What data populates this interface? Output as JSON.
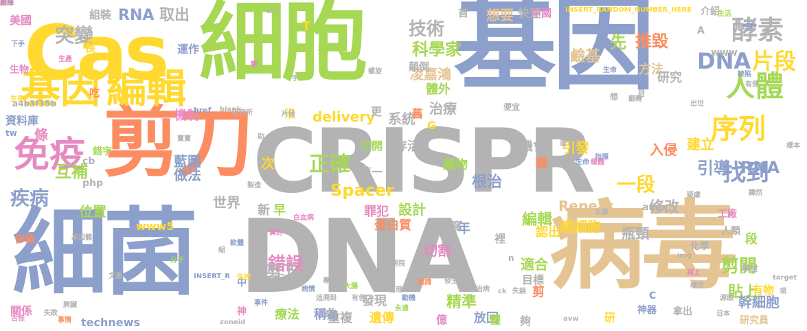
{
  "palette": {
    "blue": "#8da0cb",
    "gray": "#b3b3b3",
    "orange": "#fc8d62",
    "green": "#a6d854",
    "yellow": "#ffd92f",
    "tan": "#e5c494",
    "pink": "#e78ac3",
    "teal": "#66c2a5"
  },
  "words": [
    {
      "text": "CRISPR",
      "color": "gray"
    },
    {
      "text": "DNA",
      "color": "gray"
    },
    {
      "text": "病毒",
      "color": "tan"
    },
    {
      "text": "細菌",
      "color": "blue"
    },
    {
      "text": "基因",
      "color": "blue"
    },
    {
      "text": "細胞",
      "color": "green"
    },
    {
      "text": "Cas",
      "color": "yellow"
    },
    {
      "text": "剪刀",
      "color": "orange"
    },
    {
      "text": "基因",
      "color": "yellow"
    },
    {
      "text": "編輯",
      "color": "yellow"
    },
    {
      "text": "酵素",
      "color": "gray"
    },
    {
      "text": "人體",
      "color": "green"
    },
    {
      "text": "序列",
      "color": "yellow"
    },
    {
      "text": "DNA",
      "color": "blue"
    },
    {
      "text": "片段",
      "color": "yellow"
    },
    {
      "text": "免疫",
      "color": "pink"
    },
    {
      "text": "找到",
      "color": "blue"
    },
    {
      "text": "引導",
      "color": "blue"
    },
    {
      "text": "RNA",
      "color": "blue"
    },
    {
      "text": "技術",
      "color": "gray"
    },
    {
      "text": "科學家",
      "color": "green"
    },
    {
      "text": "突變",
      "color": "gray"
    },
    {
      "text": "正確",
      "color": "green"
    },
    {
      "text": "疾病",
      "color": "blue"
    },
    {
      "text": "互補",
      "color": "green"
    },
    {
      "text": "一段",
      "color": "yellow"
    },
    {
      "text": "凌嘉鴻",
      "color": "tan"
    },
    {
      "text": "治療",
      "color": "gray"
    },
    {
      "text": "RNA",
      "color": "blue"
    },
    {
      "text": "取出",
      "color": "gray"
    },
    {
      "text": "想要",
      "color": "tan"
    },
    {
      "text": "快速",
      "color": "gray"
    },
    {
      "text": "推毀",
      "color": "orange"
    },
    {
      "text": "先",
      "color": "green"
    },
    {
      "text": "鹼基",
      "color": "tan"
    },
    {
      "text": "方法",
      "color": "tan"
    },
    {
      "text": "研究",
      "color": "gray"
    },
    {
      "text": "根治",
      "color": "blue"
    },
    {
      "text": "錯誤",
      "color": "pink"
    },
    {
      "text": "剪下",
      "color": "gray"
    },
    {
      "text": "編輯",
      "color": "green"
    },
    {
      "text": "精準",
      "color": "green"
    },
    {
      "text": "修改",
      "color": "gray"
    },
    {
      "text": "剪開",
      "color": "green"
    },
    {
      "text": "貼上",
      "color": "green"
    },
    {
      "text": "入侵",
      "color": "orange"
    },
    {
      "text": "引發",
      "color": "yellow"
    },
    {
      "text": "建立",
      "color": "yellow"
    },
    {
      "text": "Spacer",
      "color": "yellow"
    },
    {
      "text": "Repeat",
      "color": "tan"
    },
    {
      "text": "癌細胞",
      "color": "yellow"
    },
    {
      "text": "瓶頸",
      "color": "gray"
    },
    {
      "text": "幹細胞",
      "color": "blue"
    },
    {
      "text": "位置",
      "color": "green"
    },
    {
      "text": "機制",
      "color": "pink"
    },
    {
      "text": "藍圖",
      "color": "blue"
    },
    {
      "text": "做法",
      "color": "blue"
    },
    {
      "text": "世界",
      "color": "gray"
    },
    {
      "text": "系統",
      "color": "gray"
    },
    {
      "text": "delivery",
      "color": "yellow"
    },
    {
      "text": "設計",
      "color": "green"
    },
    {
      "text": "切割",
      "color": "pink"
    },
    {
      "text": "適合",
      "color": "green"
    },
    {
      "text": "機會",
      "color": "gray"
    },
    {
      "text": "存活",
      "color": "gray"
    },
    {
      "text": "蛋白質",
      "color": "orange"
    },
    {
      "text": "罪犯",
      "color": "pink"
    },
    {
      "text": "發現",
      "color": "gray"
    },
    {
      "text": "遺傳",
      "color": "yellow"
    },
    {
      "text": "重複",
      "color": "gray"
    },
    {
      "text": "療法",
      "color": "green"
    },
    {
      "text": "稱為",
      "color": "blue"
    },
    {
      "text": "放回",
      "color": "blue"
    },
    {
      "text": "technews",
      "color": "blue"
    },
    {
      "text": "資料庫",
      "color": "blue"
    },
    {
      "text": "關係",
      "color": "pink"
    },
    {
      "text": "美國",
      "color": "pink"
    },
    {
      "text": "生物",
      "color": "pink"
    },
    {
      "text": "組裝",
      "color": "gray"
    },
    {
      "text": "運作",
      "color": "blue"
    },
    {
      "text": "顛倒",
      "color": "gray"
    },
    {
      "text": "首",
      "color": "gray"
    },
    {
      "text": "中國",
      "color": "pink"
    },
    {
      "text": "INSERT_RANDOM_NUMBER_HERE",
      "color": "yellow"
    },
    {
      "text": "介紹",
      "color": "gray"
    },
    {
      "text": "抗",
      "color": "green"
    },
    {
      "text": "長",
      "color": "yellow"
    },
    {
      "text": "吃",
      "color": "orange"
    },
    {
      "text": "條",
      "color": "pink"
    },
    {
      "text": "次",
      "color": "yellow"
    },
    {
      "text": "年",
      "color": "blue"
    },
    {
      "text": "新",
      "color": "gray"
    },
    {
      "text": "早",
      "color": "green"
    },
    {
      "text": "藥物",
      "color": "green"
    },
    {
      "text": "第一",
      "color": "gray"
    },
    {
      "text": "切開",
      "color": "green"
    },
    {
      "text": "www5",
      "color": "yellow"
    },
    {
      "text": "php",
      "color": "gray"
    },
    {
      "text": "www",
      "color": "gray"
    },
    {
      "text": "tw",
      "color": "blue"
    },
    {
      "text": "cb",
      "color": "gray"
    },
    {
      "text": "a4b3f35b",
      "color": "gray"
    },
    {
      "text": "href",
      "color": "blue"
    },
    {
      "text": "_blank",
      "color": "gray"
    },
    {
      "text": "研究所",
      "color": "gray"
    },
    {
      "text": "更",
      "color": "gray"
    },
    {
      "text": "篇",
      "color": "gray"
    },
    {
      "text": "億",
      "color": "pink"
    },
    {
      "text": "體",
      "color": "green"
    },
    {
      "text": "體外",
      "color": "green"
    },
    {
      "text": "裡",
      "color": "gray"
    },
    {
      "text": "剪",
      "color": "orange"
    },
    {
      "text": "藥",
      "color": "orange"
    },
    {
      "text": "認出",
      "color": "yellow"
    },
    {
      "text": "目標",
      "color": "gray"
    },
    {
      "text": "段",
      "color": "green"
    },
    {
      "text": "有物",
      "color": "yellow"
    },
    {
      "text": "人類",
      "color": "gray"
    },
    {
      "text": "工廠",
      "color": "pink"
    },
    {
      "text": "amp",
      "color": "gray"
    },
    {
      "text": "神器",
      "color": "blue"
    },
    {
      "text": "拿出",
      "color": "gray"
    },
    {
      "text": "研究員",
      "color": "tan"
    },
    {
      "text": "研",
      "color": "yellow"
    },
    {
      "text": "夠",
      "color": "gray"
    },
    {
      "text": "中研院",
      "color": "gray"
    },
    {
      "text": "專研",
      "color": "gray"
    },
    {
      "text": "追溯到",
      "color": "gray"
    },
    {
      "text": "前因",
      "color": "gray"
    },
    {
      "text": "缺口處",
      "color": "gray"
    },
    {
      "text": "中",
      "color": "blue"
    },
    {
      "text": "神",
      "color": "pink"
    },
    {
      "text": "事件",
      "color": "blue"
    },
    {
      "text": "zoneid",
      "color": "gray"
    },
    {
      "text": "avw",
      "color": "gray"
    },
    {
      "text": "target",
      "color": "gray"
    },
    {
      "text": "C",
      "color": "blue"
    },
    {
      "text": "A",
      "color": "gray"
    },
    {
      "text": "T",
      "color": "yellow"
    },
    {
      "text": "G",
      "color": "yellow"
    },
    {
      "text": "n",
      "color": "gray"
    },
    {
      "text": "ck",
      "color": "gray"
    },
    {
      "text": "化學",
      "color": "gray"
    },
    {
      "text": "舉世",
      "color": "gray"
    },
    {
      "text": "項",
      "color": "gray"
    },
    {
      "text": "修補",
      "color": "orange"
    },
    {
      "text": "錯字",
      "color": "green"
    },
    {
      "text": "寶寶",
      "color": "gray"
    },
    {
      "text": "月",
      "color": "gray"
    },
    {
      "text": "出世",
      "color": "gray"
    },
    {
      "text": "想",
      "color": "gray"
    },
    {
      "text": "便宜",
      "color": "gray"
    },
    {
      "text": "翻轉",
      "color": "gray"
    },
    {
      "text": "生產",
      "color": "pink"
    },
    {
      "text": "下手",
      "color": "blue"
    },
    {
      "text": "古怪",
      "color": "pink"
    },
    {
      "text": "生長",
      "color": "yellow"
    },
    {
      "text": "事情",
      "color": "orange"
    },
    {
      "text": "日本",
      "color": "gray"
    },
    {
      "text": "源頭",
      "color": "gray"
    },
    {
      "text": "構空",
      "color": "gray"
    },
    {
      "text": "生命",
      "color": "blue"
    },
    {
      "text": "蛋",
      "color": "gray"
    },
    {
      "text": "雙",
      "color": "pink"
    },
    {
      "text": "字",
      "color": "gray"
    },
    {
      "text": "螺旋",
      "color": "gray"
    },
    {
      "text": "舊",
      "color": "orange"
    },
    {
      "text": "沒",
      "color": "yellow"
    },
    {
      "text": "片段",
      "color": "gray"
    },
    {
      "text": "src",
      "color": "gray"
    },
    {
      "text": "基因體",
      "color": "gray"
    },
    {
      "text": "白血病",
      "color": "pink"
    },
    {
      "text": "分子",
      "color": "green"
    },
    {
      "text": "軟體",
      "color": "blue"
    },
    {
      "text": "病情",
      "color": "blue"
    },
    {
      "text": "大腸",
      "color": "green"
    },
    {
      "text": "剔除",
      "color": "gray"
    },
    {
      "text": "動機",
      "color": "blue"
    },
    {
      "text": "發生",
      "color": "gray"
    },
    {
      "text": "生理",
      "color": "gray"
    },
    {
      "text": "治病",
      "color": "gray"
    },
    {
      "text": "邀請",
      "color": "orange"
    },
    {
      "text": "永遠",
      "color": "green"
    },
    {
      "text": "失誤",
      "color": "gray"
    },
    {
      "text": "正義",
      "color": "gray"
    },
    {
      "text": "疑慮",
      "color": "gray"
    },
    {
      "text": "譯然",
      "color": "gray"
    },
    {
      "text": "文書",
      "color": "gray"
    },
    {
      "text": "INSERT_R",
      "color": "blue"
    },
    {
      "text": "指揮",
      "color": "blue"
    },
    {
      "text": "生活",
      "color": "green"
    },
    {
      "text": "有些",
      "color": "gray"
    },
    {
      "text": "缺陷",
      "color": "blue"
    },
    {
      "text": "控制",
      "color": "blue"
    },
    {
      "text": "img",
      "color": "gray"
    },
    {
      "text": "補上",
      "color": "pink"
    },
    {
      "text": "緩體",
      "color": "pink"
    },
    {
      "text": "生命",
      "color": "blue"
    },
    {
      "text": "樣本",
      "color": "gray"
    },
    {
      "text": "助",
      "color": "gray"
    },
    {
      "text": "製造",
      "color": "gray"
    },
    {
      "text": "組",
      "color": "gray"
    },
    {
      "text": "失控",
      "color": "yellow"
    },
    {
      "text": "真的",
      "color": "pink"
    },
    {
      "text": "脾臟",
      "color": "gray"
    },
    {
      "text": "有色",
      "color": "gray"
    },
    {
      "text": "失敗",
      "color": "gray"
    },
    {
      "text": "終身",
      "color": "orange"
    },
    {
      "text": "剔除",
      "color": "blue"
    },
    {
      "text": "身上",
      "color": "pink"
    }
  ]
}
